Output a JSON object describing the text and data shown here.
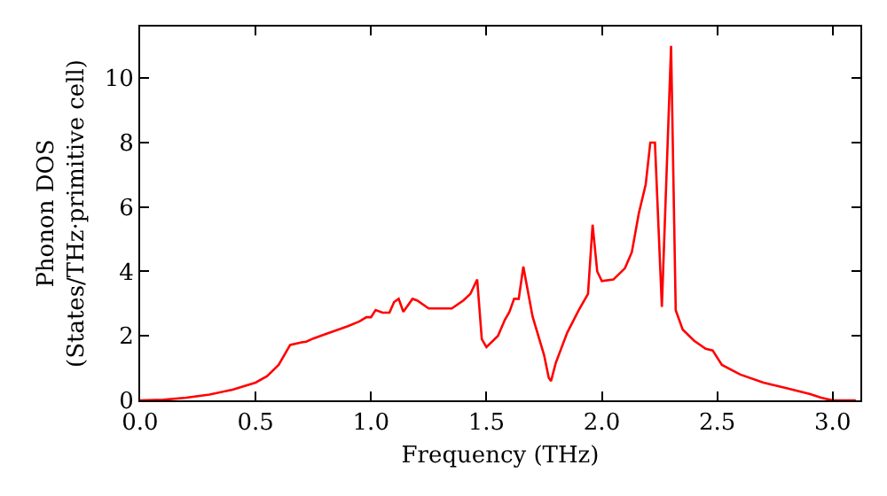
{
  "chart_data": {
    "type": "line",
    "xlabel": "Frequency (THz)",
    "ylabel": "Phonon DOS\n(States/THz·primitive cell)",
    "x": [
      0,
      0.1,
      0.2,
      0.3,
      0.4,
      0.5,
      0.55,
      0.6,
      0.65,
      0.7,
      0.72,
      0.75,
      0.8,
      0.9,
      0.95,
      0.98,
      1.0,
      1.02,
      1.05,
      1.08,
      1.1,
      1.12,
      1.14,
      1.18,
      1.2,
      1.25,
      1.3,
      1.35,
      1.4,
      1.43,
      1.46,
      1.48,
      1.5,
      1.55,
      1.58,
      1.6,
      1.62,
      1.64,
      1.66,
      1.7,
      1.75,
      1.77,
      1.78,
      1.8,
      1.85,
      1.9,
      1.94,
      1.96,
      1.98,
      2.0,
      2.05,
      2.1,
      2.13,
      2.16,
      2.19,
      2.21,
      2.23,
      2.26,
      2.3,
      2.32,
      2.35,
      2.4,
      2.45,
      2.48,
      2.52,
      2.6,
      2.7,
      2.8,
      2.9,
      2.95,
      3.0,
      3.1
    ],
    "series": [
      {
        "color": "#ff0000",
        "values": [
          0,
          0.02,
          0.08,
          0.18,
          0.33,
          0.55,
          0.75,
          1.1,
          1.72,
          1.8,
          1.82,
          1.92,
          2.05,
          2.3,
          2.45,
          2.58,
          2.58,
          2.8,
          2.72,
          2.72,
          3.05,
          3.15,
          2.75,
          3.15,
          3.1,
          2.85,
          2.85,
          2.85,
          3.1,
          3.3,
          3.75,
          1.9,
          1.65,
          2.0,
          2.5,
          2.75,
          3.15,
          3.15,
          4.15,
          2.6,
          1.4,
          0.7,
          0.6,
          1.15,
          2.1,
          2.8,
          3.3,
          5.45,
          4.0,
          3.7,
          3.75,
          4.1,
          4.6,
          5.8,
          6.7,
          8.0,
          8.0,
          2.9,
          11.0,
          2.8,
          2.2,
          1.85,
          1.6,
          1.55,
          1.1,
          0.8,
          0.55,
          0.38,
          0.2,
          0.08,
          0,
          0
        ]
      }
    ],
    "xlim": [
      0,
      3.12
    ],
    "xticks": [
      {
        "value": 0,
        "label": "0.0"
      },
      {
        "value": 0.5,
        "label": "0.5"
      },
      {
        "value": 1,
        "label": "1.0"
      },
      {
        "value": 1.5,
        "label": "1.5"
      },
      {
        "value": 2,
        "label": "2.0"
      },
      {
        "value": 2.5,
        "label": "2.5"
      },
      {
        "value": 3,
        "label": "3.0"
      }
    ],
    "ylim": [
      0,
      11.6
    ],
    "yticks": [
      0,
      2,
      4,
      6,
      8,
      10
    ],
    "grid": false,
    "marker": "none",
    "line_style": "solid"
  }
}
